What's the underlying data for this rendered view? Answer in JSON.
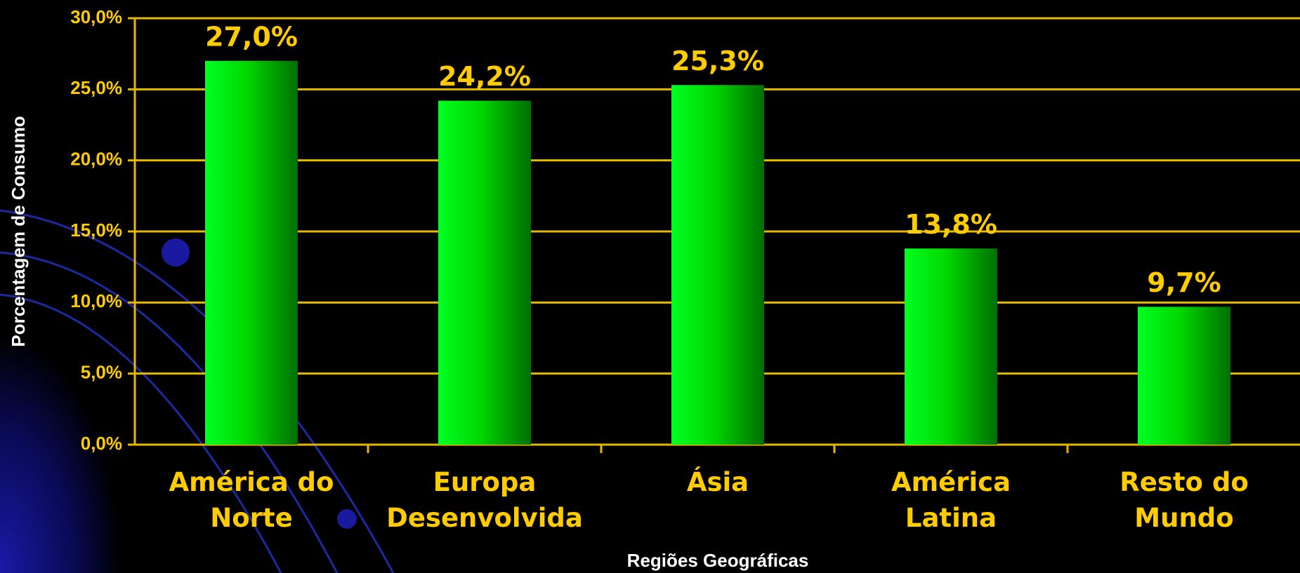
{
  "chart_data": {
    "type": "bar",
    "categories": [
      "América do\nNorte",
      "Europa\nDesenvolvida",
      "Ásia",
      "América\nLatina",
      "Resto do\nMundo"
    ],
    "values": [
      27.0,
      24.2,
      25.3,
      13.8,
      9.7
    ],
    "value_labels": [
      "27,0%",
      "24,2%",
      "25,3%",
      "13,8%",
      "9,7%"
    ],
    "color": "#00e000",
    "x_label": "Regiões Geográficas",
    "y_label": "Porcentagem de Consumo",
    "ylim": [
      0,
      30
    ],
    "yticks": [
      {
        "value": 0,
        "label": "0,0%"
      },
      {
        "value": 5,
        "label": "5,0%"
      },
      {
        "value": 10,
        "label": "10,0%"
      },
      {
        "value": 15,
        "label": "15,0%"
      },
      {
        "value": 20,
        "label": "20,0%"
      },
      {
        "value": 25,
        "label": "25,0%"
      },
      {
        "value": 30,
        "label": "30,0%"
      }
    ],
    "grid": true
  }
}
